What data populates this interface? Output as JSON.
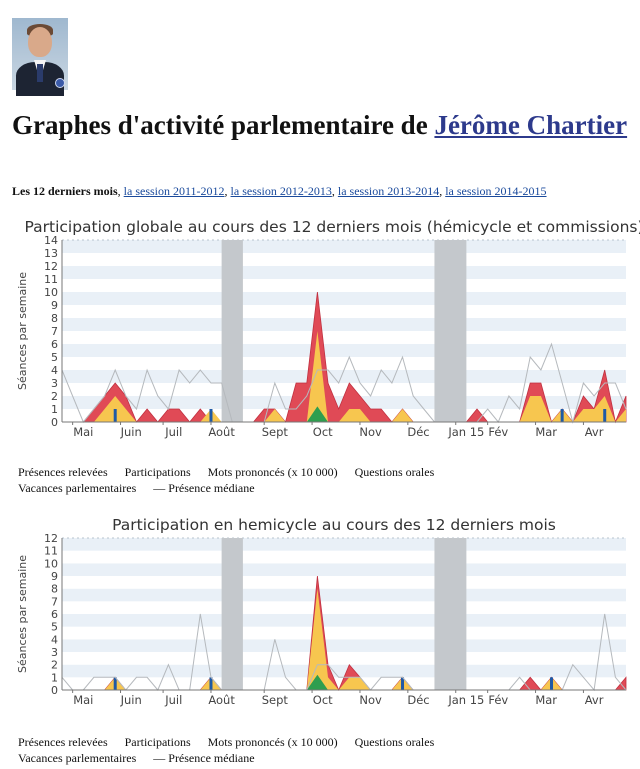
{
  "title_prefix": "Graphes d'activité parlementaire de ",
  "deputy_name": "Jérôme Chartier",
  "sessions": {
    "current": "Les 12 derniers mois",
    "separator": ",",
    "links": [
      "la session 2011-2012",
      "la session 2012-2013",
      "la session 2013-2014",
      "la session 2014-2015"
    ]
  },
  "legend": {
    "presences": "Présences relevées",
    "participations": "Participations",
    "mots": "Mots prononcés (x 10 000)",
    "questions": "Questions orales",
    "vacances": "Vacances parlementaires",
    "mediane": "— Présence médiane"
  },
  "colors": {
    "presences": "#e04a56",
    "participations": "#f7c64f",
    "mots": "#2e9e4f",
    "questions": "#1f5aa6",
    "vacances": "#c4c8cc",
    "mediane": "#b5b9bd"
  },
  "chart_data": [
    {
      "type": "area",
      "title": "Participation globale au cours des 12 derniers mois (hémicycle et commissions)",
      "ylabel": "Séances par semaine",
      "ylim": [
        0,
        14
      ],
      "weeks": 53,
      "month_labels": [
        {
          "week": 2,
          "label": "Mai"
        },
        {
          "week": 6.5,
          "label": "Juin"
        },
        {
          "week": 10.5,
          "label": "Juil"
        },
        {
          "week": 15,
          "label": "Août"
        },
        {
          "week": 20,
          "label": "Sept"
        },
        {
          "week": 24.5,
          "label": "Oct"
        },
        {
          "week": 29,
          "label": "Nov"
        },
        {
          "week": 33.5,
          "label": "Déc"
        },
        {
          "week": 38,
          "label": "Jan 15"
        },
        {
          "week": 41,
          "label": "Fév"
        },
        {
          "week": 45.5,
          "label": "Mar"
        },
        {
          "week": 50,
          "label": "Avr"
        }
      ],
      "vacations": [
        [
          15,
          17
        ],
        [
          35,
          38
        ]
      ],
      "series": [
        {
          "name": "Présences relevées",
          "values": [
            0,
            0,
            0,
            1,
            2,
            3,
            2,
            0,
            1,
            0,
            1,
            1,
            0,
            1,
            0,
            0,
            0,
            0,
            0,
            1,
            1,
            0,
            3,
            3,
            10,
            3,
            1,
            3,
            2,
            1,
            1,
            0,
            1,
            0,
            0,
            0,
            0,
            0,
            0,
            1,
            0,
            0,
            0,
            0,
            3,
            3,
            0,
            1,
            0,
            2,
            1,
            4,
            0,
            2
          ]
        },
        {
          "name": "Participations",
          "values": [
            0,
            0,
            0,
            0,
            1,
            2,
            1,
            0,
            0,
            0,
            0,
            0,
            0,
            0,
            1,
            0,
            0,
            0,
            0,
            0,
            1,
            0,
            0,
            0,
            7,
            0,
            0,
            1,
            1,
            0,
            0,
            0,
            1,
            0,
            0,
            0,
            0,
            0,
            0,
            0,
            0,
            0,
            0,
            0,
            2,
            2,
            0,
            1,
            0,
            1,
            1,
            2,
            0,
            1
          ]
        },
        {
          "name": "Mots prononcés (x 10 000)",
          "values": [
            0,
            0,
            0,
            0,
            0,
            0,
            0,
            0,
            0,
            0,
            0,
            0,
            0,
            0,
            0,
            0,
            0,
            0,
            0,
            0,
            0,
            0,
            0,
            0,
            1.2,
            0,
            0,
            0,
            0,
            0,
            0,
            0,
            0,
            0,
            0,
            0,
            0,
            0,
            0,
            0,
            0,
            0,
            0,
            0,
            0,
            0,
            0,
            0,
            0,
            0,
            0,
            0,
            0,
            0
          ]
        },
        {
          "name": "Questions orales",
          "values": [
            0,
            0,
            0,
            0,
            0,
            1,
            0,
            0,
            0,
            0,
            0,
            0,
            0,
            0,
            1,
            0,
            0,
            0,
            0,
            0,
            0,
            0,
            0,
            0,
            0,
            0,
            0,
            0,
            0,
            0,
            0,
            0,
            0,
            0,
            0,
            0,
            0,
            0,
            0,
            0,
            0,
            0,
            0,
            0,
            0,
            0,
            0,
            1,
            0,
            0,
            0,
            1,
            0,
            0
          ]
        },
        {
          "name": "Présence médiane",
          "values": [
            4,
            2,
            0,
            1,
            2,
            4,
            2,
            1,
            4,
            2,
            1,
            4,
            3,
            4,
            3,
            3,
            0,
            0,
            0,
            0,
            3,
            1,
            1,
            2,
            4,
            4,
            3,
            5,
            3,
            2,
            4,
            3,
            5,
            2,
            1,
            0,
            0,
            0,
            0,
            0,
            1,
            0,
            2,
            1,
            5,
            4,
            6,
            3,
            0,
            3,
            2,
            3,
            3,
            1
          ]
        }
      ]
    },
    {
      "type": "area",
      "title": "Participation en hemicycle au cours des 12 derniers mois",
      "ylabel": "Séances par semaine",
      "ylim": [
        0,
        12
      ],
      "weeks": 53,
      "month_labels": [
        {
          "week": 2,
          "label": "Mai"
        },
        {
          "week": 6.5,
          "label": "Juin"
        },
        {
          "week": 10.5,
          "label": "Juil"
        },
        {
          "week": 15,
          "label": "Août"
        },
        {
          "week": 20,
          "label": "Sept"
        },
        {
          "week": 24.5,
          "label": "Oct"
        },
        {
          "week": 29,
          "label": "Nov"
        },
        {
          "week": 33.5,
          "label": "Déc"
        },
        {
          "week": 38,
          "label": "Jan 15"
        },
        {
          "week": 41,
          "label": "Fév"
        },
        {
          "week": 45.5,
          "label": "Mar"
        },
        {
          "week": 50,
          "label": "Avr"
        }
      ],
      "vacations": [
        [
          15,
          17
        ],
        [
          35,
          38
        ]
      ],
      "series": [
        {
          "name": "Présences relevées",
          "values": [
            0,
            0,
            0,
            0,
            0,
            1,
            0,
            0,
            0,
            0,
            0,
            0,
            0,
            0,
            1,
            0,
            0,
            0,
            0,
            0,
            0,
            0,
            0,
            0,
            9,
            2,
            0,
            2,
            1,
            0,
            0,
            0,
            1,
            0,
            0,
            0,
            0,
            0,
            0,
            0,
            0,
            0,
            0,
            0,
            1,
            0,
            1,
            0,
            0,
            0,
            0,
            0,
            0,
            1
          ]
        },
        {
          "name": "Participations",
          "values": [
            0,
            0,
            0,
            0,
            0,
            1,
            0,
            0,
            0,
            0,
            0,
            0,
            0,
            0,
            1,
            0,
            0,
            0,
            0,
            0,
            0,
            0,
            0,
            0,
            8,
            1,
            0,
            1,
            1,
            0,
            0,
            0,
            1,
            0,
            0,
            0,
            0,
            0,
            0,
            0,
            0,
            0,
            0,
            0,
            0,
            0,
            1,
            0,
            0,
            0,
            0,
            0,
            0,
            0
          ]
        },
        {
          "name": "Mots prononcés (x 10 000)",
          "values": [
            0,
            0,
            0,
            0,
            0,
            0,
            0,
            0,
            0,
            0,
            0,
            0,
            0,
            0,
            0,
            0,
            0,
            0,
            0,
            0,
            0,
            0,
            0,
            0,
            1.2,
            0,
            0,
            0,
            0,
            0,
            0,
            0,
            0,
            0,
            0,
            0,
            0,
            0,
            0,
            0,
            0,
            0,
            0,
            0,
            0,
            0,
            0,
            0,
            0,
            0,
            0,
            0,
            0,
            0
          ]
        },
        {
          "name": "Questions orales",
          "values": [
            0,
            0,
            0,
            0,
            0,
            1,
            0,
            0,
            0,
            0,
            0,
            0,
            0,
            0,
            1,
            0,
            0,
            0,
            0,
            0,
            0,
            0,
            0,
            0,
            0,
            0,
            0,
            0,
            0,
            0,
            0,
            0,
            1,
            0,
            0,
            0,
            0,
            0,
            0,
            0,
            0,
            0,
            0,
            0,
            0,
            0,
            1,
            0,
            0,
            0,
            0,
            0,
            0,
            0
          ]
        },
        {
          "name": "Présence médiane",
          "values": [
            1,
            0,
            0,
            1,
            1,
            1,
            0,
            1,
            1,
            0,
            2,
            0,
            0,
            6,
            1,
            0,
            0,
            0,
            0,
            0,
            4,
            1,
            0,
            0,
            2,
            2,
            1,
            1,
            1,
            0,
            1,
            1,
            1,
            0,
            0,
            0,
            0,
            0,
            0,
            0,
            0,
            0,
            0,
            1,
            0,
            0,
            0,
            0,
            2,
            1,
            0,
            6,
            1,
            0
          ]
        }
      ]
    }
  ]
}
